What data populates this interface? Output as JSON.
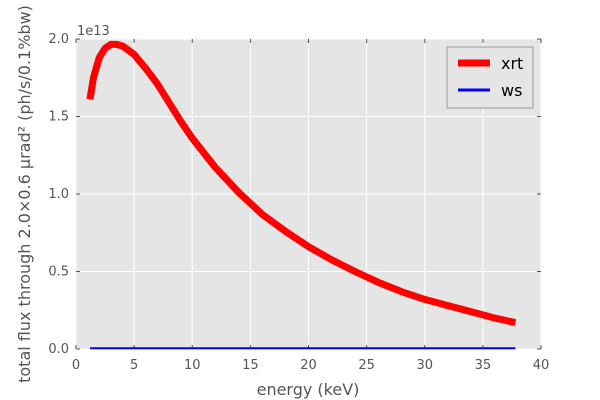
{
  "chart_data": {
    "type": "line",
    "title": "",
    "xlabel": "energy (keV)",
    "ylabel": "total flux through 2.0×0.6 µrad² (ph/s/0.1%bw)",
    "y_offset_label": "1e13",
    "xlim": [
      0,
      40
    ],
    "ylim": [
      0,
      2.0
    ],
    "xticks": [
      "0",
      "5",
      "10",
      "15",
      "20",
      "25",
      "30",
      "35",
      "40"
    ],
    "yticks": [
      "0.0",
      "0.5",
      "1.0",
      "1.5",
      "2.0"
    ],
    "grid": true,
    "legend_position": "top-right",
    "series": [
      {
        "name": "xrt",
        "color": "#ff0000",
        "x": [
          1.2,
          1.5,
          2.0,
          2.5,
          3.0,
          3.5,
          4.0,
          5.0,
          6.0,
          7.0,
          8.0,
          9.0,
          10.0,
          12.0,
          14.0,
          16.0,
          18.0,
          20.0,
          22.0,
          24.0,
          26.0,
          28.0,
          30.0,
          32.0,
          34.0,
          36.0,
          37.8
        ],
        "y": [
          1.61,
          1.75,
          1.88,
          1.94,
          1.965,
          1.965,
          1.955,
          1.9,
          1.81,
          1.71,
          1.59,
          1.47,
          1.36,
          1.17,
          1.01,
          0.87,
          0.76,
          0.66,
          0.575,
          0.5,
          0.43,
          0.37,
          0.32,
          0.28,
          0.24,
          0.2,
          0.17
        ]
      },
      {
        "name": "ws",
        "color": "#0000ff",
        "x": [
          1.2,
          37.8
        ],
        "y": [
          0.005,
          0.005
        ]
      }
    ]
  }
}
